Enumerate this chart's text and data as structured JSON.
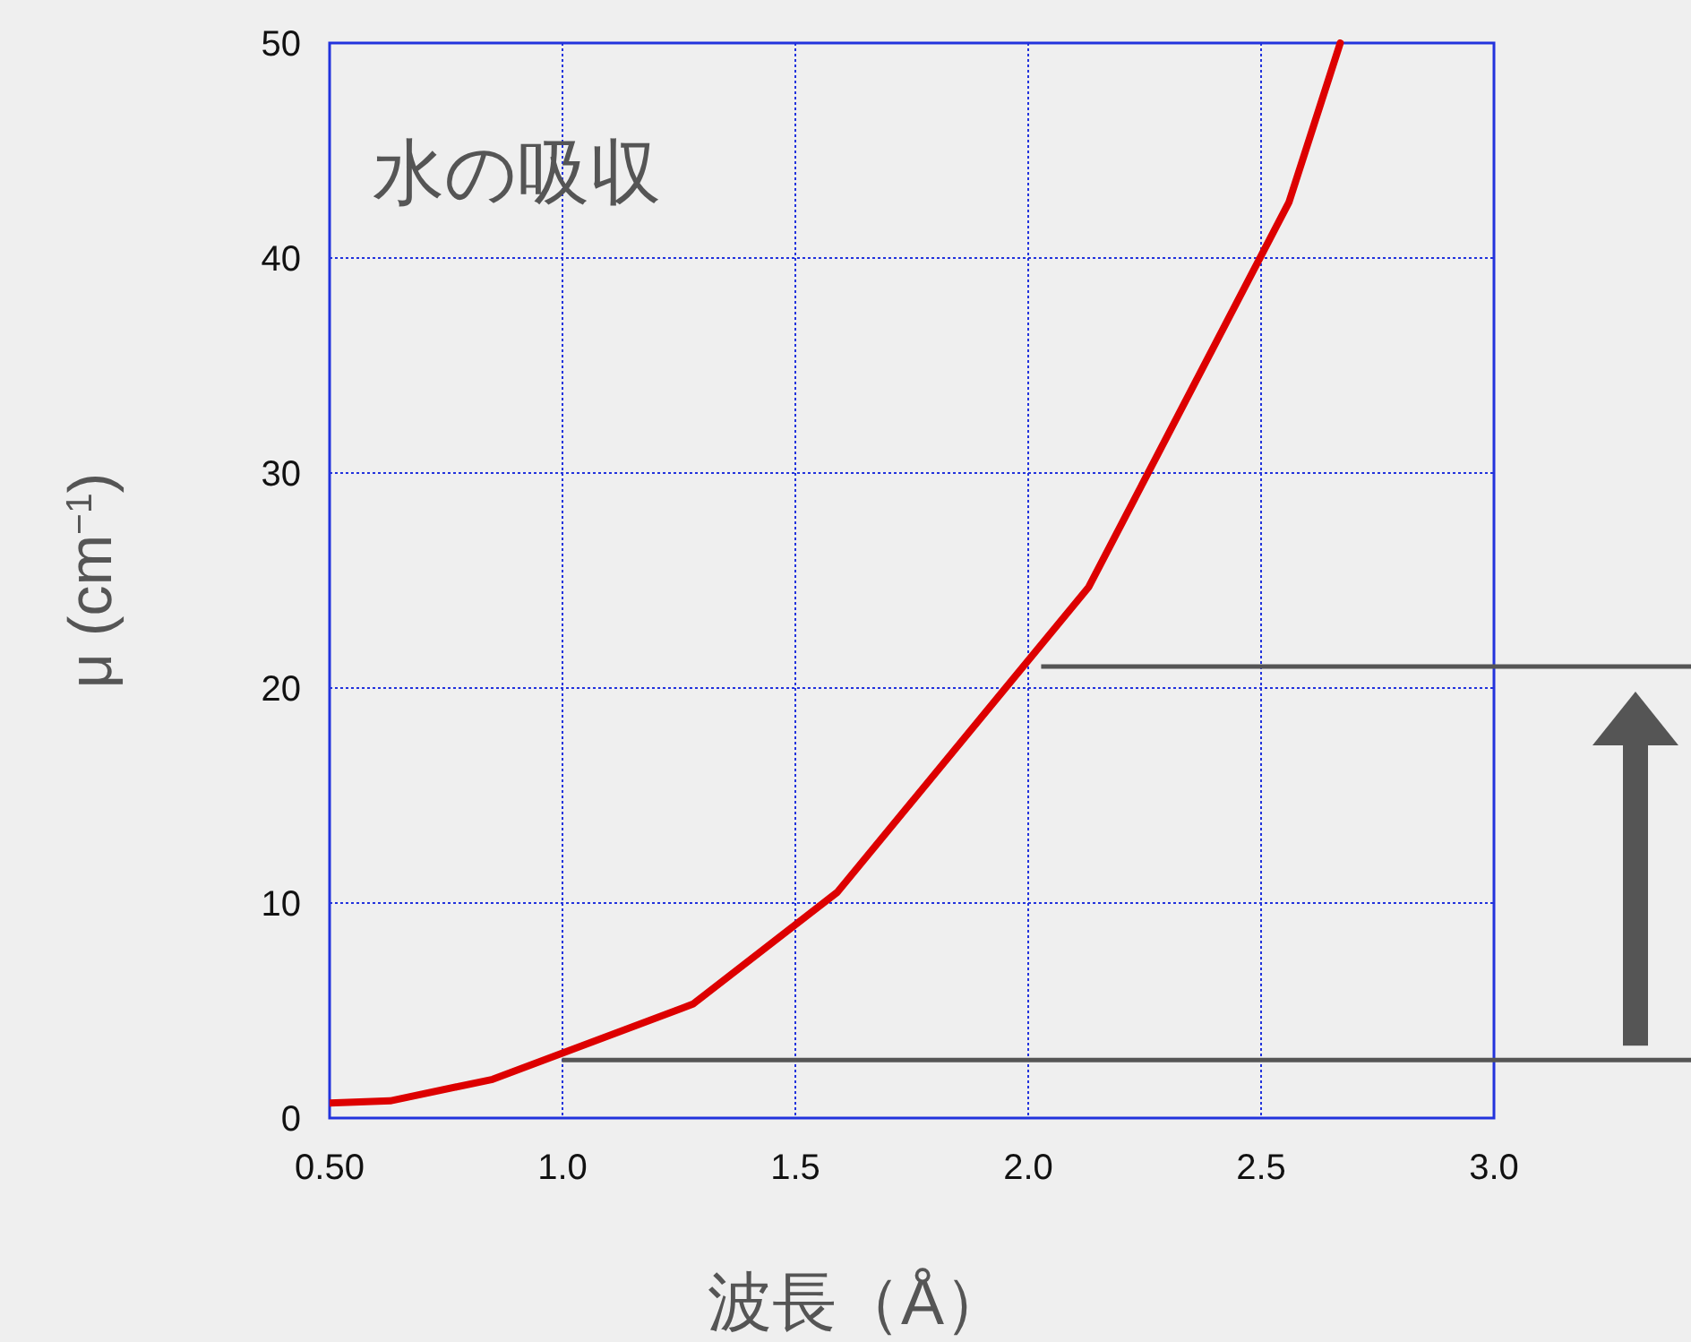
{
  "chart_data": {
    "type": "line",
    "title": "水の吸収",
    "xlabel": "波長（Å）",
    "ylabel": "μ (cm$^{−1}$)",
    "series": [
      {
        "color": "#dd0000",
        "x": [
          0.5,
          0.63,
          0.85,
          1.28,
          1.59,
          2.13,
          2.56,
          2.67
        ],
        "values": [
          0.7,
          0.8,
          1.8,
          5.3,
          10.5,
          24.7,
          42.6,
          50
        ]
      }
    ],
    "xlim": [
      0.5,
      3.0
    ],
    "ylim": [
      0,
      50
    ],
    "xticks": [
      {
        "value": 0.5,
        "label": "0.50"
      },
      {
        "value": 1.0,
        "label": "1.0"
      },
      {
        "value": 1.5,
        "label": "1.5"
      },
      {
        "value": 2.0,
        "label": "2.0"
      },
      {
        "value": 2.5,
        "label": "2.5"
      },
      {
        "value": 3.0,
        "label": "3.0"
      }
    ],
    "yticks": [
      0,
      10,
      20,
      30,
      40,
      50
    ],
    "grid": true,
    "marker": "none",
    "line_style": "solid",
    "ref_lines": [
      {
        "axis": "y",
        "value": 21,
        "color": "#555555"
      },
      {
        "axis": "y",
        "value": 2.7,
        "color": "#555555"
      }
    ]
  }
}
